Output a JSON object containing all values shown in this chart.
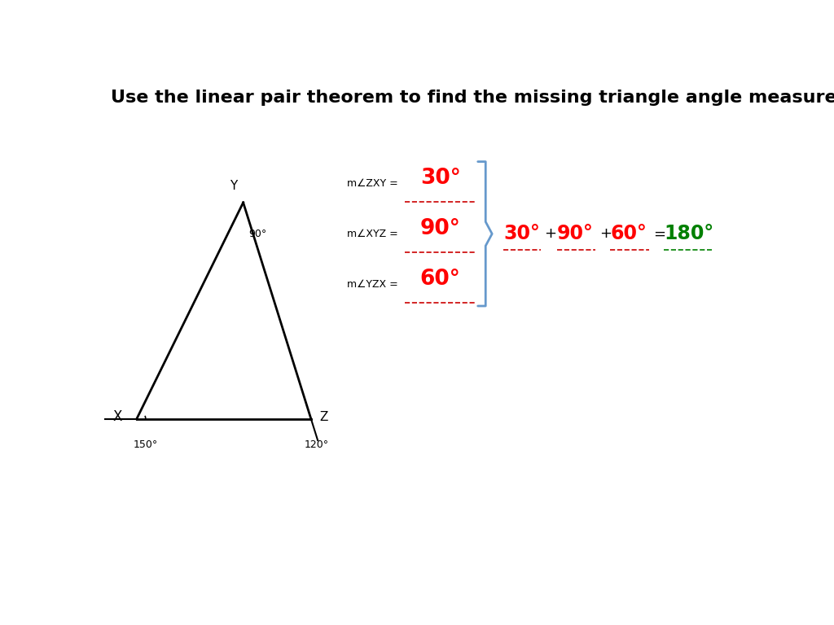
{
  "title": "Use the linear pair theorem to find the missing triangle angle measures:",
  "title_fontsize": 16,
  "bg_color": "#ffffff",
  "equations": {
    "line1_label": "m∠ZXY =",
    "line1_value": "30°",
    "line2_label": "m∠XYZ =",
    "line2_value": "90°",
    "line3_label": "m∠YZX =",
    "line3_value": "60°"
  },
  "sum_equation": {
    "val1": "30°",
    "val2": "90°",
    "val3": "60°",
    "result": "180°"
  },
  "colors": {
    "red": "#ff0000",
    "green": "#008000",
    "black": "#000000",
    "blue_brace": "#6699cc",
    "underline_red": "#cc0000"
  }
}
